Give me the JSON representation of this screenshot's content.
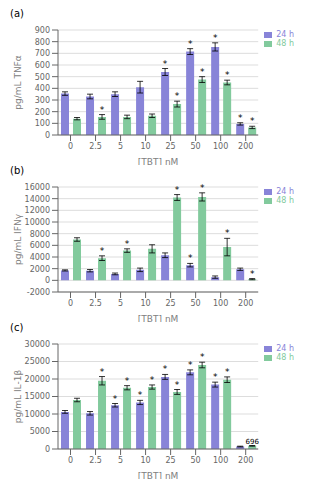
{
  "chart_data": [
    {
      "type": "bar",
      "title": "(a)",
      "categories": [
        "0",
        "2.5",
        "5",
        "10",
        "25",
        "50",
        "100",
        "200"
      ],
      "xlabel": "[TBT] nM",
      "ylabel": "pg/mL TNFα",
      "ylim": [
        0,
        900
      ],
      "yticks": [
        0,
        100,
        200,
        300,
        400,
        500,
        600,
        700,
        800,
        900
      ],
      "grid": true,
      "legend": "right",
      "series": [
        {
          "name": "24 h",
          "color": "#8884d8",
          "values": [
            355,
            330,
            350,
            410,
            540,
            715,
            755,
            95
          ],
          "errors": [
            15,
            20,
            20,
            50,
            30,
            25,
            35,
            10
          ],
          "annotations": [
            null,
            null,
            null,
            null,
            "*",
            "*",
            "*",
            "*"
          ]
        },
        {
          "name": "48 h",
          "color": "#82ca9d",
          "values": [
            140,
            155,
            155,
            165,
            265,
            475,
            450,
            65
          ],
          "errors": [
            10,
            20,
            15,
            15,
            25,
            25,
            20,
            10
          ],
          "annotations": [
            null,
            "*",
            null,
            null,
            "*",
            "*",
            "*",
            "*"
          ]
        }
      ]
    },
    {
      "type": "bar",
      "title": "(b)",
      "categories": [
        "0",
        "2.5",
        "5",
        "10",
        "25",
        "50",
        "100",
        "200"
      ],
      "xlabel": "[TBT] nM",
      "ylabel": "pg/mL IFNγ",
      "ylim": [
        -2000,
        16000
      ],
      "yticks": [
        -2000,
        0,
        2000,
        4000,
        6000,
        8000,
        10000,
        12000,
        14000,
        16000
      ],
      "grid": true,
      "legend": "right",
      "series": [
        {
          "name": "24 h",
          "color": "#8884d8",
          "values": [
            1700,
            1650,
            1100,
            1800,
            4300,
            2600,
            550,
            1900
          ],
          "errors": [
            100,
            200,
            150,
            300,
            400,
            300,
            200,
            200
          ],
          "annotations": [
            null,
            null,
            null,
            null,
            null,
            "*",
            null,
            null
          ]
        },
        {
          "name": "48 h",
          "color": "#82ca9d",
          "values": [
            7000,
            3800,
            5100,
            5400,
            14200,
            14300,
            5700,
            200
          ],
          "errors": [
            300,
            400,
            300,
            700,
            500,
            700,
            1500,
            100
          ],
          "annotations": [
            null,
            "*",
            "*",
            null,
            "*",
            "*",
            "*",
            "*"
          ]
        }
      ]
    },
    {
      "type": "bar",
      "title": "(c)",
      "categories": [
        "0",
        "2.5",
        "5",
        "10",
        "25",
        "50",
        "100",
        "200"
      ],
      "xlabel": "[TBT] nM",
      "ylabel": "pg/mL IL-1β",
      "ylim": [
        0,
        30000
      ],
      "yticks": [
        0,
        5000,
        10000,
        15000,
        20000,
        25000,
        30000
      ],
      "grid": true,
      "legend": "right",
      "series": [
        {
          "name": "24 h",
          "color": "#8884d8",
          "values": [
            10600,
            10200,
            12500,
            13300,
            20600,
            21900,
            18400,
            700
          ],
          "errors": [
            400,
            500,
            500,
            600,
            700,
            700,
            700,
            100
          ],
          "annotations": [
            null,
            null,
            "*",
            "*",
            "*",
            "*",
            "*",
            null
          ]
        },
        {
          "name": "48 h",
          "color": "#82ca9d",
          "values": [
            14000,
            19500,
            17500,
            17700,
            16300,
            24000,
            19800,
            900
          ],
          "errors": [
            500,
            1200,
            600,
            600,
            700,
            800,
            800,
            100
          ],
          "annotations": [
            null,
            "*",
            "*",
            "*",
            "*",
            "*",
            "*",
            "696"
          ]
        }
      ]
    }
  ]
}
